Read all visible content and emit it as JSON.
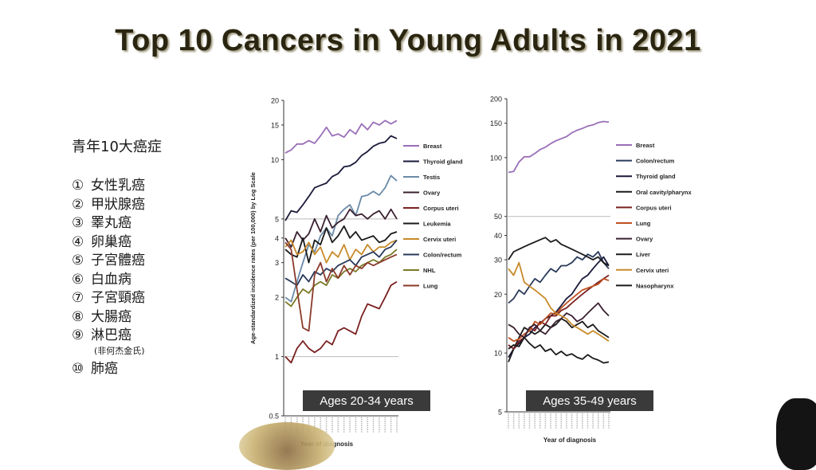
{
  "slide": {
    "title": "Top 10 Cancers in Young Adults in 2021"
  },
  "cn_list": {
    "heading": "青年10大癌症",
    "items": [
      {
        "num": "①",
        "label": "女性乳癌"
      },
      {
        "num": "②",
        "label": "甲狀腺癌"
      },
      {
        "num": "③",
        "label": "睪丸癌"
      },
      {
        "num": "④",
        "label": "卵巢癌"
      },
      {
        "num": "⑤",
        "label": "子宮體癌"
      },
      {
        "num": "⑥",
        "label": "白血病"
      },
      {
        "num": "⑦",
        "label": "子宮頸癌"
      },
      {
        "num": "⑧",
        "label": "大腸癌"
      },
      {
        "num": "⑨",
        "label": "淋巴癌"
      },
      {
        "num": "⑩",
        "label": "肺癌"
      }
    ],
    "note": "(非何杰金氏)"
  },
  "chart_data": [
    {
      "type": "line",
      "title": "Ages 20-34 years",
      "xlabel": "Year of diagnosis",
      "ylabel": "Age-standardized incidence rates (per 100,000) by Log Scale",
      "yscale": "log",
      "yticks": [
        0.5,
        1,
        2,
        3,
        4,
        5,
        10,
        15,
        20
      ],
      "ylim": [
        0.5,
        20
      ],
      "reference_lines": [
        1,
        5
      ],
      "legend_position": "right",
      "series": [
        {
          "name": "Breast",
          "color": "#9a6fb8",
          "values": [
            10.8,
            11.2,
            12.0,
            12.0,
            12.5,
            12.1,
            13.2,
            14.6,
            13.2,
            13.5,
            13.0,
            14.2,
            13.5,
            15.2,
            14.2,
            15.5,
            15.0,
            15.8,
            15.2,
            15.8
          ]
        },
        {
          "name": "Thyroid gland",
          "color": "#1a1a3a",
          "values": [
            4.9,
            5.5,
            5.4,
            5.9,
            6.5,
            7.2,
            7.4,
            7.6,
            8.2,
            8.5,
            9.2,
            9.3,
            9.7,
            10.5,
            11.0,
            11.7,
            12.1,
            12.3,
            13.2,
            12.8
          ]
        },
        {
          "name": "Testis",
          "color": "#6a8aa8",
          "values": [
            2.0,
            1.9,
            2.4,
            3.0,
            3.7,
            3.4,
            4.1,
            4.5,
            4.1,
            5.2,
            5.6,
            5.9,
            5.2,
            6.5,
            6.6,
            6.9,
            6.6,
            7.2,
            8.3,
            7.8
          ]
        },
        {
          "name": "Ovary",
          "color": "#3a2030",
          "values": [
            4.0,
            3.6,
            4.3,
            3.9,
            4.2,
            5.0,
            4.3,
            5.2,
            4.5,
            4.8,
            5.0,
            5.6,
            5.2,
            5.3,
            5.0,
            5.3,
            5.5,
            5.0,
            5.6,
            5.0
          ]
        },
        {
          "name": "Corpus uteri",
          "color": "#7a2020",
          "values": [
            1.0,
            0.93,
            1.1,
            1.2,
            1.1,
            1.05,
            1.1,
            1.2,
            1.15,
            1.35,
            1.4,
            1.35,
            1.3,
            1.6,
            1.85,
            1.8,
            1.75,
            2.0,
            2.3,
            2.4
          ]
        },
        {
          "name": "Leukemia",
          "color": "#1a1a1a",
          "values": [
            3.5,
            3.3,
            3.2,
            4.0,
            3.0,
            3.9,
            3.7,
            4.5,
            3.8,
            4.1,
            4.6,
            4.0,
            4.3,
            3.9,
            4.0,
            4.1,
            3.8,
            3.9,
            4.2,
            4.3
          ]
        },
        {
          "name": "Cervix uteri",
          "color": "#c88a2a",
          "values": [
            3.6,
            3.9,
            3.3,
            3.4,
            3.8,
            3.3,
            3.6,
            3.0,
            3.4,
            3.2,
            3.7,
            3.1,
            3.5,
            3.3,
            3.7,
            3.4,
            3.6,
            3.6,
            3.8,
            3.9
          ]
        },
        {
          "name": "Colon/rectum",
          "color": "#2a3a5a",
          "values": [
            2.5,
            2.4,
            2.3,
            2.6,
            2.4,
            2.7,
            2.6,
            2.8,
            2.7,
            2.9,
            3.0,
            3.1,
            2.9,
            3.2,
            3.3,
            3.4,
            3.2,
            3.5,
            3.6,
            3.9
          ]
        },
        {
          "name": "NHL",
          "color": "#7a7a2a",
          "values": [
            1.9,
            1.8,
            2.0,
            2.2,
            2.1,
            2.3,
            2.4,
            2.3,
            2.6,
            2.5,
            2.7,
            2.8,
            2.7,
            2.9,
            3.0,
            3.1,
            3.0,
            3.2,
            3.3,
            3.5
          ]
        },
        {
          "name": "Lung",
          "color": "#8a3a2a",
          "values": [
            3.8,
            3.5,
            2.2,
            1.4,
            1.35,
            2.6,
            3.0,
            2.4,
            2.8,
            2.5,
            2.9,
            2.6,
            2.9,
            2.8,
            3.0,
            2.9,
            3.0,
            3.1,
            3.2,
            3.3
          ]
        }
      ]
    },
    {
      "type": "line",
      "title": "Ages 35-49 years",
      "xlabel": "Year of diagnosis",
      "ylabel": "",
      "yscale": "log",
      "yticks": [
        5,
        10,
        20,
        30,
        40,
        50,
        100,
        150,
        200
      ],
      "ylim": [
        5,
        200
      ],
      "reference_lines": [
        50
      ],
      "legend_position": "right",
      "series": [
        {
          "name": "Breast",
          "color": "#9a6fb8",
          "values": [
            84,
            85,
            95,
            101,
            101,
            105,
            110,
            113,
            118,
            122,
            125,
            128,
            134,
            138,
            141,
            145,
            147,
            151,
            153,
            152
          ]
        },
        {
          "name": "Colon/rectum",
          "color": "#2a3a5a",
          "values": [
            18,
            19,
            21,
            20,
            22,
            24,
            23,
            25,
            27,
            26,
            28,
            28,
            29,
            31,
            30,
            32,
            31,
            33,
            29,
            27
          ]
        },
        {
          "name": "Thyroid gland",
          "color": "#1a1a3a",
          "values": [
            9.5,
            10.5,
            11.2,
            12.0,
            12.5,
            13.5,
            14.2,
            15.0,
            15.5,
            16.2,
            17.5,
            19,
            20,
            22,
            24,
            25,
            27,
            29,
            31,
            28
          ]
        },
        {
          "name": "Oral cavity/pharynx",
          "color": "#1a1a1a",
          "values": [
            9.0,
            10.5,
            12.0,
            13.5,
            13.0,
            12.5,
            13.0,
            14.0,
            13.5,
            14.0,
            15.0,
            14.5,
            13.5,
            14.0,
            14.5,
            13.5,
            14.0,
            13.0,
            12.5,
            12.0
          ]
        },
        {
          "name": "Corpus uteri",
          "color": "#7a2020",
          "values": [
            11.0,
            10.5,
            11.5,
            12.0,
            13.5,
            13.0,
            14.5,
            14.0,
            15.5,
            15.5,
            16.5,
            17.0,
            18.0,
            19.0,
            20.0,
            21.0,
            22.0,
            23.0,
            24.0,
            25.0
          ]
        },
        {
          "name": "Lung",
          "color": "#c05020",
          "values": [
            12.0,
            11.5,
            11.8,
            12.5,
            13.0,
            14.5,
            14.0,
            15.0,
            16.0,
            15.8,
            17.0,
            18.0,
            19.0,
            20.0,
            21.0,
            21.5,
            22.0,
            22.5,
            24.0,
            23.5
          ]
        },
        {
          "name": "Ovary",
          "color": "#3a2030",
          "values": [
            14.0,
            13.5,
            12.5,
            12.0,
            13.5,
            14.0,
            13.0,
            12.5,
            13.5,
            14.5,
            15.0,
            16.0,
            15.5,
            14.5,
            15.0,
            16.0,
            17.0,
            18.0,
            16.5,
            15.5
          ]
        },
        {
          "name": "Liver",
          "color": "#1a1a1a",
          "values": [
            30,
            33,
            34,
            35,
            36,
            37,
            38,
            39,
            37,
            38,
            36,
            35,
            34,
            33,
            32,
            31,
            30,
            31,
            29,
            28
          ]
        },
        {
          "name": "Cervix uteri",
          "color": "#c88a2a",
          "values": [
            27,
            25,
            29,
            23,
            22,
            21,
            20,
            19,
            17,
            16,
            15.5,
            15,
            14,
            13.5,
            13,
            12.5,
            13,
            12.5,
            12,
            11.5
          ]
        },
        {
          "name": "Nasopharynx",
          "color": "#1a1a1a",
          "values": [
            10.5,
            11,
            10.8,
            12,
            11.2,
            10.6,
            11,
            10.2,
            10.5,
            9.8,
            10.2,
            9.7,
            9.9,
            9.5,
            9.3,
            9.8,
            9.4,
            9.2,
            8.9,
            9.0
          ]
        }
      ]
    }
  ]
}
